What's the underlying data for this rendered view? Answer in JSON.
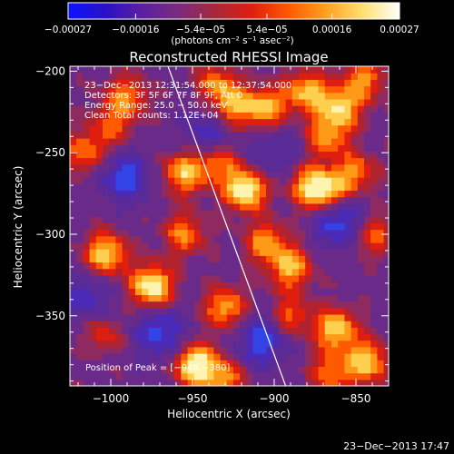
{
  "chart_data": {
    "type": "heatmap",
    "title": "Reconstructed RHESSI Image",
    "xlabel": "Heliocentric X (arcsec)",
    "ylabel": "Heliocentric Y (arcsec)",
    "xlim": [
      -1025,
      -830
    ],
    "ylim": [
      -393,
      -197
    ],
    "x_ticks": [
      -1000,
      -950,
      -900,
      -850
    ],
    "x_tick_labels": [
      "−1000",
      "−950",
      "−900",
      "−850"
    ],
    "y_ticks": [
      -200,
      -250,
      -300,
      -350
    ],
    "y_tick_labels": [
      "−200",
      "−250",
      "−300",
      "−350"
    ],
    "colorbar": {
      "min": -0.00027,
      "max": 0.00027,
      "ticks": [
        -0.00027,
        -0.00016,
        -5.4e-05,
        5.4e-05,
        0.00016,
        0.00027
      ],
      "tick_labels": [
        "−0.00027",
        "−0.00016",
        "−5.4e−05",
        "5.4e−05",
        "0.00016",
        "0.00027"
      ],
      "unit_label": "(photons cm⁻² s⁻¹ asec⁻²)",
      "colors": [
        "#0a14ff",
        "#2a10c8",
        "#5a1fa0",
        "#7a2b7e",
        "#a8283a",
        "#e01e10",
        "#ff5a00",
        "#ffa020",
        "#ffe070",
        "#ffffff"
      ]
    },
    "info_lines": [
      "23−Dec−2013 12:31:54.000 to 12:37:54.000",
      "Detectors: 3F 5F 6F 7F 8F 9F, Att 0",
      "Energy Range: 25.0 − 50.0 keV",
      "Clean     Total counts: 1.12E+04"
    ],
    "peak_label": "Position of Peak = [−948,−380]",
    "peak_position": [
      -948,
      -380
    ],
    "limb_line": [
      [
        -965,
        -197
      ],
      [
        -893,
        -393
      ]
    ],
    "sources": [
      {
        "x": -935,
        "y": -208,
        "strength": 0.55
      },
      {
        "x": -925,
        "y": -222,
        "strength": 0.6
      },
      {
        "x": -905,
        "y": -222,
        "strength": 0.7
      },
      {
        "x": -880,
        "y": -212,
        "strength": 0.7
      },
      {
        "x": -860,
        "y": -222,
        "strength": 0.75
      },
      {
        "x": -845,
        "y": -205,
        "strength": 0.6
      },
      {
        "x": -868,
        "y": -240,
        "strength": 0.6
      },
      {
        "x": -918,
        "y": -272,
        "strength": 1.0
      },
      {
        "x": -955,
        "y": -262,
        "strength": 0.75
      },
      {
        "x": -935,
        "y": -255,
        "strength": 0.55
      },
      {
        "x": -880,
        "y": -270,
        "strength": 0.55
      },
      {
        "x": -868,
        "y": -273,
        "strength": 0.8
      },
      {
        "x": -850,
        "y": -262,
        "strength": 0.55
      },
      {
        "x": -1015,
        "y": -250,
        "strength": 0.55
      },
      {
        "x": -990,
        "y": -215,
        "strength": 0.55
      },
      {
        "x": -1000,
        "y": -232,
        "strength": 0.45
      },
      {
        "x": -1003,
        "y": -312,
        "strength": 0.8
      },
      {
        "x": -955,
        "y": -300,
        "strength": 0.55
      },
      {
        "x": -905,
        "y": -305,
        "strength": 0.6
      },
      {
        "x": -890,
        "y": -320,
        "strength": 0.7
      },
      {
        "x": -840,
        "y": -300,
        "strength": 0.5
      },
      {
        "x": -975,
        "y": -332,
        "strength": 1.0
      },
      {
        "x": -930,
        "y": -345,
        "strength": 0.7
      },
      {
        "x": -890,
        "y": -350,
        "strength": 0.5
      },
      {
        "x": -862,
        "y": -358,
        "strength": 0.8
      },
      {
        "x": -843,
        "y": -378,
        "strength": 0.75
      },
      {
        "x": -1005,
        "y": -360,
        "strength": 0.4
      },
      {
        "x": -948,
        "y": -380,
        "strength": 1.0
      },
      {
        "x": -930,
        "y": -388,
        "strength": 0.55
      },
      {
        "x": -865,
        "y": -385,
        "strength": 0.55
      }
    ],
    "negative_regions": [
      {
        "x": -992,
        "y": -265,
        "strength": 0.55
      },
      {
        "x": -940,
        "y": -238,
        "strength": 0.45
      },
      {
        "x": -970,
        "y": -360,
        "strength": 0.55
      },
      {
        "x": -908,
        "y": -365,
        "strength": 0.55
      },
      {
        "x": -860,
        "y": -292,
        "strength": 0.6
      },
      {
        "x": -1015,
        "y": -340,
        "strength": 0.4
      },
      {
        "x": -900,
        "y": -250,
        "strength": 0.35
      }
    ]
  },
  "footer": {
    "timestamp": "23−Dec−2013 17:47"
  }
}
